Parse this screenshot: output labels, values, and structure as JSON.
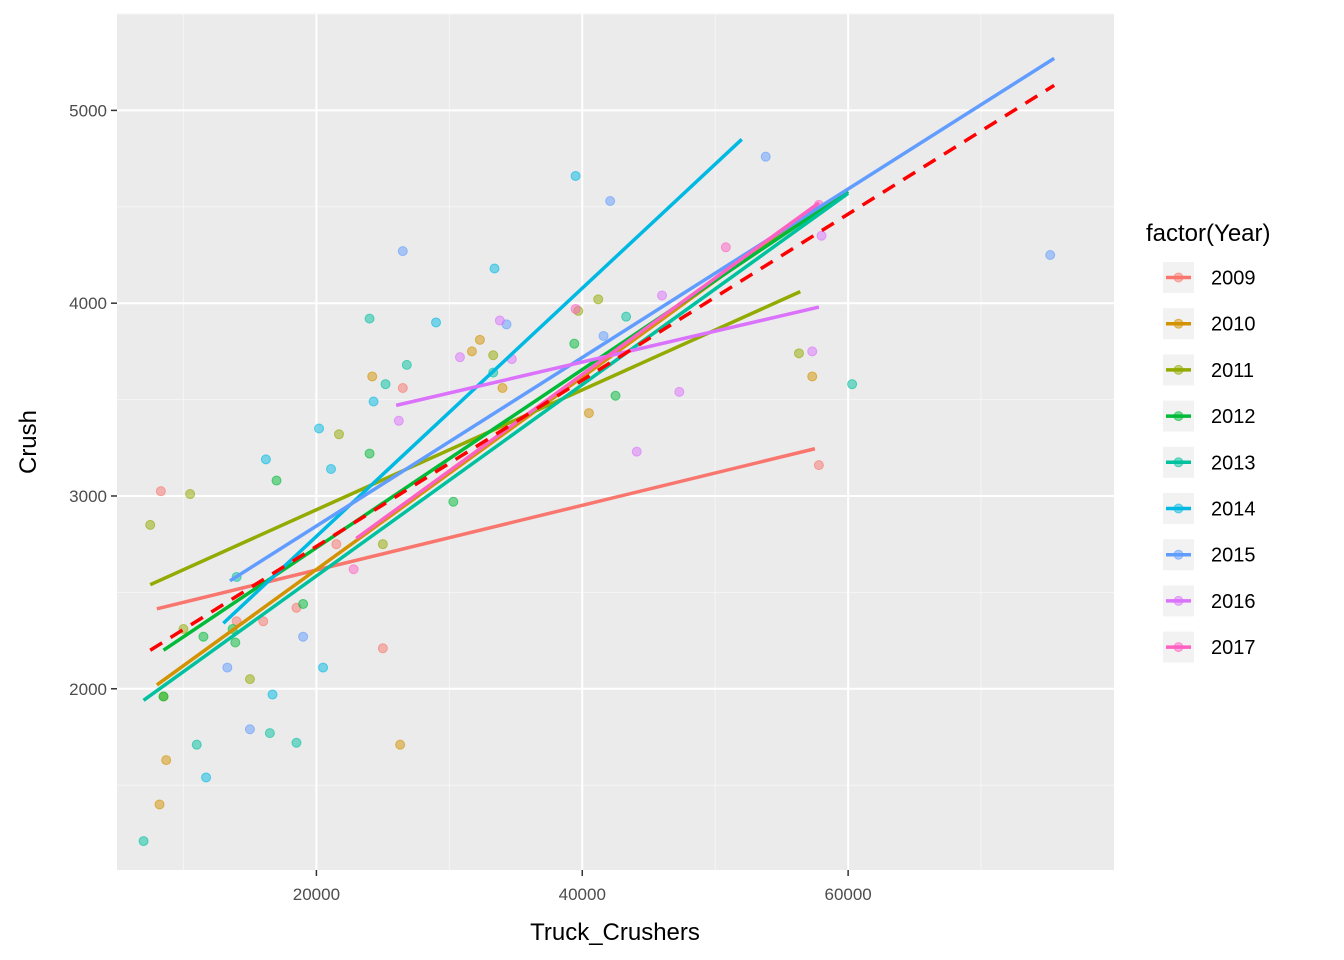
{
  "chart_data": {
    "type": "scatter",
    "xlabel": "Truck_Crushers",
    "ylabel": "Crush",
    "xlim": [
      5000,
      80000
    ],
    "ylim": [
      1060,
      5500
    ],
    "x_ticks": [
      20000,
      40000,
      60000
    ],
    "x_tick_labels": [
      "20000",
      "40000",
      "60000"
    ],
    "y_ticks": [
      2000,
      3000,
      4000,
      5000
    ],
    "y_tick_labels": [
      "2000",
      "3000",
      "4000",
      "5000"
    ],
    "grid": true,
    "legend": {
      "title": "factor(Year)",
      "position": "right"
    },
    "series": [
      {
        "name": "2009",
        "color": "#F8766D",
        "fit": [
          [
            8000,
            2415
          ],
          [
            57500,
            3245
          ]
        ],
        "points": [
          [
            8300,
            3025
          ],
          [
            14000,
            2350
          ],
          [
            16000,
            2350
          ],
          [
            18500,
            2420
          ],
          [
            21500,
            2750
          ],
          [
            25000,
            2210
          ],
          [
            26500,
            3560
          ],
          [
            57800,
            3160
          ]
        ]
      },
      {
        "name": "2010",
        "color": "#D39200",
        "fit": [
          [
            8000,
            2020
          ],
          [
            57700,
            4500
          ]
        ],
        "points": [
          [
            8200,
            1400
          ],
          [
            8700,
            1630
          ],
          [
            24200,
            3620
          ],
          [
            26300,
            1710
          ],
          [
            31700,
            3750
          ],
          [
            32300,
            3810
          ],
          [
            34000,
            3560
          ],
          [
            40500,
            3430
          ],
          [
            57300,
            3620
          ]
        ]
      },
      {
        "name": "2011",
        "color": "#93AA00",
        "fit": [
          [
            7500,
            2540
          ],
          [
            56400,
            4060
          ]
        ],
        "points": [
          [
            7500,
            2850
          ],
          [
            8500,
            1960
          ],
          [
            10000,
            2310
          ],
          [
            10500,
            3010
          ],
          [
            15000,
            2050
          ],
          [
            21700,
            3320
          ],
          [
            25000,
            2750
          ],
          [
            33300,
            3730
          ],
          [
            39700,
            3960
          ],
          [
            41200,
            4020
          ],
          [
            56300,
            3740
          ]
        ]
      },
      {
        "name": "2012",
        "color": "#00BA38",
        "fit": [
          [
            8500,
            2200
          ],
          [
            60000,
            4580
          ]
        ],
        "points": [
          [
            8500,
            1960
          ],
          [
            11500,
            2270
          ],
          [
            13700,
            2310
          ],
          [
            13900,
            2240
          ],
          [
            17000,
            3080
          ],
          [
            19000,
            2440
          ],
          [
            24000,
            3220
          ],
          [
            30300,
            2970
          ],
          [
            39400,
            3790
          ],
          [
            42500,
            3520
          ]
        ]
      },
      {
        "name": "2013",
        "color": "#00C19F",
        "fit": [
          [
            7000,
            1940
          ],
          [
            60000,
            4570
          ]
        ],
        "points": [
          [
            7000,
            1210
          ],
          [
            11000,
            1710
          ],
          [
            14000,
            2580
          ],
          [
            16500,
            1770
          ],
          [
            18500,
            1720
          ],
          [
            24000,
            3920
          ],
          [
            25200,
            3580
          ],
          [
            26800,
            3680
          ],
          [
            33300,
            3640
          ],
          [
            43300,
            3930
          ],
          [
            60300,
            3580
          ]
        ]
      },
      {
        "name": "2014",
        "color": "#00B9E3",
        "fit": [
          [
            13000,
            2340
          ],
          [
            52000,
            4850
          ]
        ],
        "points": [
          [
            11700,
            1540
          ],
          [
            16200,
            3190
          ],
          [
            16700,
            1970
          ],
          [
            20200,
            3350
          ],
          [
            20500,
            2110
          ],
          [
            21100,
            3140
          ],
          [
            24300,
            3490
          ],
          [
            29000,
            3900
          ],
          [
            33400,
            4180
          ],
          [
            39500,
            4660
          ]
        ]
      },
      {
        "name": "2015",
        "color": "#619CFF",
        "fit": [
          [
            13500,
            2560
          ],
          [
            75500,
            5270
          ]
        ],
        "points": [
          [
            13300,
            2110
          ],
          [
            15000,
            1790
          ],
          [
            19000,
            2270
          ],
          [
            26500,
            4270
          ],
          [
            34300,
            3890
          ],
          [
            41600,
            3830
          ],
          [
            42100,
            4530
          ],
          [
            53800,
            4760
          ],
          [
            75200,
            4250
          ]
        ]
      },
      {
        "name": "2016",
        "color": "#DB72FB",
        "fit": [
          [
            26000,
            3470
          ],
          [
            57800,
            3980
          ]
        ],
        "points": [
          [
            26200,
            3390
          ],
          [
            30800,
            3720
          ],
          [
            33800,
            3910
          ],
          [
            34700,
            3710
          ],
          [
            44100,
            3230
          ],
          [
            46000,
            4040
          ],
          [
            47300,
            3540
          ],
          [
            57300,
            3750
          ],
          [
            58000,
            4350
          ]
        ]
      },
      {
        "name": "2017",
        "color": "#FF61C3",
        "fit": [
          [
            23000,
            2780
          ],
          [
            57800,
            4520
          ]
        ],
        "points": [
          [
            22800,
            2620
          ],
          [
            39500,
            3970
          ],
          [
            50800,
            4290
          ],
          [
            57800,
            4510
          ]
        ]
      }
    ],
    "overall_fit": {
      "color": "#FF0000",
      "style": "dashed",
      "line": [
        [
          7500,
          2200
        ],
        [
          75500,
          5130
        ]
      ]
    }
  }
}
